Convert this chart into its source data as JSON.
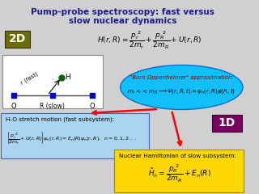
{
  "title_line1": "Pump-probe spectroscopy: fast versus",
  "title_line2": "slow nuclear dynamics",
  "title_color": "#1a1a8c",
  "bg_color": "#d0d0d0",
  "label_2D": "2D",
  "label_1D": "1D",
  "label_2D_bg": "#6b6b00",
  "label_1D_bg": "#7a0060",
  "bo_text1": "\"Born Oppenheimer\" approximation:",
  "bo_ellipse_color": "#00BFFF",
  "arrow_color": "#FF0000",
  "fast_box_bg": "#aad4f0",
  "slow_box_bg": "#FFD700",
  "diagram_box_color": "#FFFFFF"
}
